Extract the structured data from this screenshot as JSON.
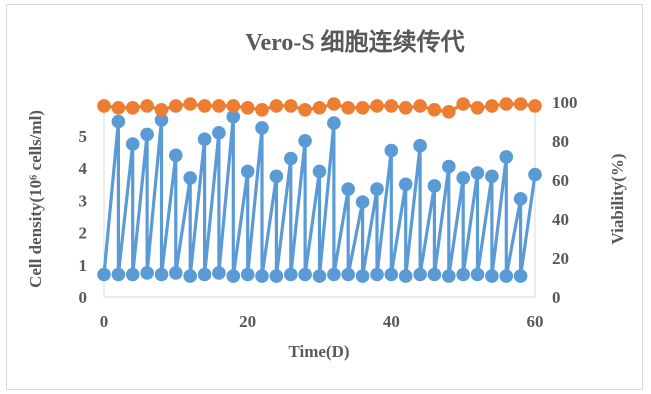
{
  "chart_data": {
    "type": "line",
    "title": "Vero-S 细胞连续传代",
    "xlabel": "Time(D)",
    "ylabel_left": "Cell density(10⁶ cells/ml)",
    "ylabel_right": "Viability(%)",
    "xlim": [
      0,
      60
    ],
    "xticks": [
      0,
      20,
      40,
      60
    ],
    "ylim_left": [
      0,
      6
    ],
    "yticks_left": [
      0,
      1,
      2,
      3,
      4,
      5
    ],
    "ylim_right": [
      0,
      120
    ],
    "yticks_right": [
      0,
      20,
      40,
      60,
      80,
      100
    ],
    "grid": false,
    "legend": "none",
    "series": [
      {
        "axis": "left",
        "color": "#5b9bd5",
        "marker": "circle",
        "points": [
          [
            0,
            0.7
          ],
          [
            2,
            5.45
          ],
          [
            2,
            0.7
          ],
          [
            4,
            4.75
          ],
          [
            4,
            0.7
          ],
          [
            6,
            5.05
          ],
          [
            6,
            0.75
          ],
          [
            8,
            5.5
          ],
          [
            8,
            0.7
          ],
          [
            10,
            4.4
          ],
          [
            10,
            0.75
          ],
          [
            12,
            3.7
          ],
          [
            12,
            0.65
          ],
          [
            14,
            4.9
          ],
          [
            14,
            0.7
          ],
          [
            16,
            5.1
          ],
          [
            16,
            0.75
          ],
          [
            18,
            5.6
          ],
          [
            18,
            0.65
          ],
          [
            20,
            3.9
          ],
          [
            20,
            0.7
          ],
          [
            22,
            5.25
          ],
          [
            22,
            0.65
          ],
          [
            24,
            3.75
          ],
          [
            24,
            0.65
          ],
          [
            26,
            4.3
          ],
          [
            26,
            0.7
          ],
          [
            28,
            4.85
          ],
          [
            28,
            0.7
          ],
          [
            30,
            3.9
          ],
          [
            30,
            0.65
          ],
          [
            32,
            5.4
          ],
          [
            32,
            0.7
          ],
          [
            34,
            3.35
          ],
          [
            34,
            0.7
          ],
          [
            36,
            2.95
          ],
          [
            36,
            0.65
          ],
          [
            38,
            3.35
          ],
          [
            38,
            0.7
          ],
          [
            40,
            4.55
          ],
          [
            40,
            0.7
          ],
          [
            42,
            3.5
          ],
          [
            42,
            0.65
          ],
          [
            44,
            4.7
          ],
          [
            44,
            0.7
          ],
          [
            46,
            3.45
          ],
          [
            46,
            0.7
          ],
          [
            48,
            4.05
          ],
          [
            48,
            0.65
          ],
          [
            50,
            3.7
          ],
          [
            50,
            0.7
          ],
          [
            52,
            3.85
          ],
          [
            52,
            0.7
          ],
          [
            54,
            3.75
          ],
          [
            54,
            0.65
          ],
          [
            56,
            4.35
          ],
          [
            56,
            0.65
          ],
          [
            58,
            3.05
          ],
          [
            58,
            0.65
          ],
          [
            60,
            3.8
          ]
        ]
      },
      {
        "axis": "right",
        "color": "#ed7d31",
        "marker": "circle",
        "points": [
          [
            0,
            98
          ],
          [
            2,
            97
          ],
          [
            4,
            97
          ],
          [
            6,
            98
          ],
          [
            8,
            96
          ],
          [
            10,
            98
          ],
          [
            12,
            99
          ],
          [
            14,
            98
          ],
          [
            16,
            98
          ],
          [
            18,
            98
          ],
          [
            20,
            97
          ],
          [
            22,
            96
          ],
          [
            24,
            98
          ],
          [
            26,
            98
          ],
          [
            28,
            96
          ],
          [
            30,
            97
          ],
          [
            32,
            99
          ],
          [
            34,
            97
          ],
          [
            36,
            97
          ],
          [
            38,
            98
          ],
          [
            40,
            98
          ],
          [
            42,
            97
          ],
          [
            44,
            98
          ],
          [
            46,
            96
          ],
          [
            48,
            95
          ],
          [
            50,
            99
          ],
          [
            52,
            97
          ],
          [
            54,
            98
          ],
          [
            56,
            99
          ],
          [
            58,
            99
          ],
          [
            60,
            98
          ]
        ]
      }
    ]
  }
}
